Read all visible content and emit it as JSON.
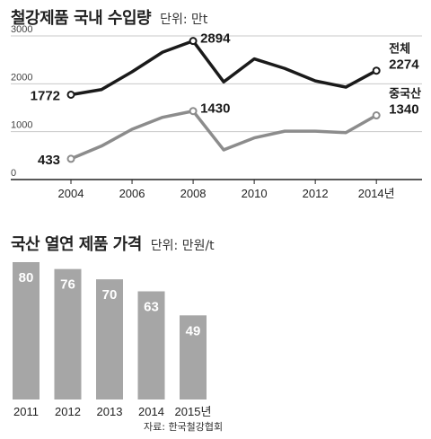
{
  "chart_data": [
    {
      "type": "line",
      "title": "철강제품 국내 수입량",
      "unit_label": "단위: 만t",
      "x": [
        2004,
        2005,
        2006,
        2007,
        2008,
        2009,
        2010,
        2011,
        2012,
        2013,
        2014
      ],
      "x_tick_labels": [
        "2004",
        "2006",
        "2008",
        "2010",
        "2012",
        "2014년"
      ],
      "x_tick_values": [
        2004,
        2006,
        2008,
        2010,
        2012,
        2014
      ],
      "y_ticks": [
        0,
        1000,
        2000,
        3000
      ],
      "ylim": [
        0,
        3000
      ],
      "series": [
        {
          "name": "전체",
          "color": "#1a1a1a",
          "values": [
            1772,
            1880,
            2250,
            2660,
            2894,
            2040,
            2520,
            2320,
            2060,
            1930,
            2274
          ]
        },
        {
          "name": "중국산",
          "color": "#8c8c8c",
          "values": [
            433,
            700,
            1050,
            1300,
            1430,
            620,
            870,
            1010,
            1010,
            980,
            1340
          ]
        }
      ],
      "annotations": [
        {
          "series": 0,
          "index": 0,
          "text": "1772"
        },
        {
          "series": 0,
          "index": 4,
          "text": "2894"
        },
        {
          "series": 0,
          "index": 10,
          "text": "2274"
        },
        {
          "series": 1,
          "index": 0,
          "text": "433"
        },
        {
          "series": 1,
          "index": 4,
          "text": "1430"
        },
        {
          "series": 1,
          "index": 10,
          "text": "1340"
        }
      ]
    },
    {
      "type": "bar",
      "title": "국산 열연 제품 가격",
      "unit_label": "단위: 만원/t",
      "categories": [
        "2011",
        "2012",
        "2013",
        "2014",
        "2015년"
      ],
      "values": [
        80,
        76,
        70,
        63,
        49
      ],
      "color": "#a6a6a6",
      "label_color": "#ffffff"
    }
  ],
  "source": "자료: 한국철강협회"
}
